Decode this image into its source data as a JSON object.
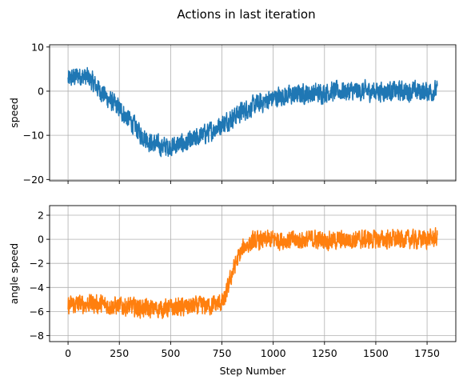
{
  "chart_data": {
    "type": "line",
    "title": "Actions in last iteration",
    "xlabel": "Step Number",
    "x_range": [
      0,
      1800
    ],
    "xlim": [
      -90,
      1890
    ],
    "xticks": [
      0,
      250,
      500,
      750,
      1000,
      1250,
      1500,
      1750
    ],
    "grid": true,
    "panels": [
      {
        "ylabel": "speed",
        "ylim": [
          -20.3,
          10.5
        ],
        "yticks": [
          10,
          0,
          -10,
          -20
        ],
        "show_xticklabels": false,
        "series": [
          {
            "color": "#1f77b4",
            "trend": [
              [
                0,
                2.5
              ],
              [
                50,
                3.5
              ],
              [
                100,
                3.0
              ],
              [
                150,
                0.5
              ],
              [
                200,
                -2.0
              ],
              [
                250,
                -4.0
              ],
              [
                300,
                -6.5
              ],
              [
                350,
                -9.5
              ],
              [
                400,
                -11.5
              ],
              [
                450,
                -12.5
              ],
              [
                500,
                -12.5
              ],
              [
                550,
                -12.0
              ],
              [
                600,
                -11.5
              ],
              [
                650,
                -10.0
              ],
              [
                700,
                -9.0
              ],
              [
                750,
                -7.5
              ],
              [
                800,
                -6.0
              ],
              [
                850,
                -4.5
              ],
              [
                900,
                -3.5
              ],
              [
                950,
                -2.5
              ],
              [
                1000,
                -1.5
              ],
              [
                1050,
                -1.0
              ],
              [
                1100,
                -1.0
              ],
              [
                1150,
                -0.5
              ],
              [
                1200,
                -0.5
              ],
              [
                1300,
                0.0
              ],
              [
                1400,
                0.0
              ],
              [
                1500,
                0.0
              ],
              [
                1600,
                0.0
              ],
              [
                1700,
                0.0
              ],
              [
                1800,
                0.0
              ]
            ],
            "noise_amplitude": 2.6
          }
        ]
      },
      {
        "ylabel": "angle speed",
        "ylim": [
          -8.5,
          2.8
        ],
        "yticks": [
          2,
          0,
          -2,
          -4,
          -6,
          -8
        ],
        "show_xticklabels": true,
        "series": [
          {
            "color": "#ff7f0e",
            "trend": [
              [
                0,
                -5.5
              ],
              [
                100,
                -5.3
              ],
              [
                200,
                -5.5
              ],
              [
                300,
                -5.6
              ],
              [
                400,
                -5.8
              ],
              [
                500,
                -5.7
              ],
              [
                600,
                -5.6
              ],
              [
                700,
                -5.5
              ],
              [
                760,
                -5.2
              ],
              [
                780,
                -4.0
              ],
              [
                800,
                -2.8
              ],
              [
                830,
                -1.5
              ],
              [
                860,
                -0.6
              ],
              [
                900,
                -0.2
              ],
              [
                1000,
                0.0
              ],
              [
                1100,
                -0.1
              ],
              [
                1200,
                0.0
              ],
              [
                1300,
                -0.1
              ],
              [
                1400,
                0.0
              ],
              [
                1500,
                0.0
              ],
              [
                1600,
                0.0
              ],
              [
                1700,
                0.0
              ],
              [
                1800,
                0.1
              ]
            ],
            "noise_amplitude": 0.9
          }
        ]
      }
    ]
  }
}
